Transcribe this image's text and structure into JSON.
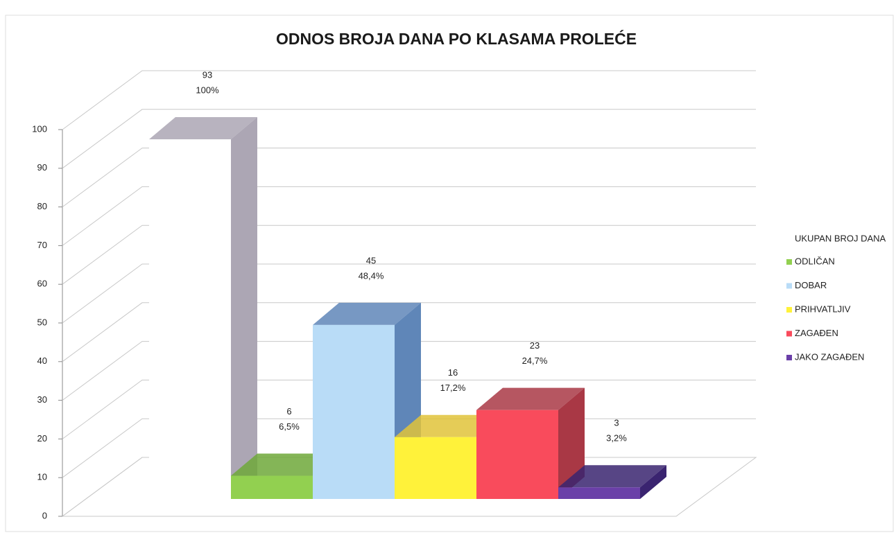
{
  "chart_data": {
    "type": "bar3d",
    "title": "ODNOS BROJA DANA PO KLASAMA PROLEĆE",
    "ylim": [
      0,
      100
    ],
    "yticks": [
      0,
      10,
      20,
      30,
      40,
      50,
      60,
      70,
      80,
      90,
      100
    ],
    "grid": true,
    "legend": "right",
    "series": [
      {
        "name": "UKUPAN BROJ DANA",
        "color": "#ffffff",
        "side": "#aca6b4",
        "values": [
          93
        ],
        "shares": [
          100
        ],
        "share_labels": [
          "100%"
        ]
      },
      {
        "name": "ODLIČAN",
        "color": "#92d050",
        "side": "#6ea83a",
        "values": [
          6
        ],
        "shares": [
          6.5
        ],
        "share_labels": [
          "6,5%"
        ]
      },
      {
        "name": "DOBAR",
        "color": "#b9dcf7",
        "side": "#5f86b8",
        "values": [
          45
        ],
        "shares": [
          48.4
        ],
        "share_labels": [
          "48,4%"
        ]
      },
      {
        "name": "PRIHVATLJIV",
        "color": "#fff23a",
        "side": "#e1c33a",
        "values": [
          16
        ],
        "shares": [
          17.2
        ],
        "share_labels": [
          "17,2%"
        ]
      },
      {
        "name": "ZAGAĐEN",
        "color": "#f94b5c",
        "side": "#a93845",
        "values": [
          23
        ],
        "shares": [
          24.7
        ],
        "share_labels": [
          "24,7%"
        ]
      },
      {
        "name": "JAKO ZAGAĐEN",
        "color": "#6a3fa8",
        "side": "#3a2470",
        "values": [
          3
        ],
        "shares": [
          3.2
        ],
        "share_labels": [
          "3,2%"
        ]
      }
    ]
  }
}
